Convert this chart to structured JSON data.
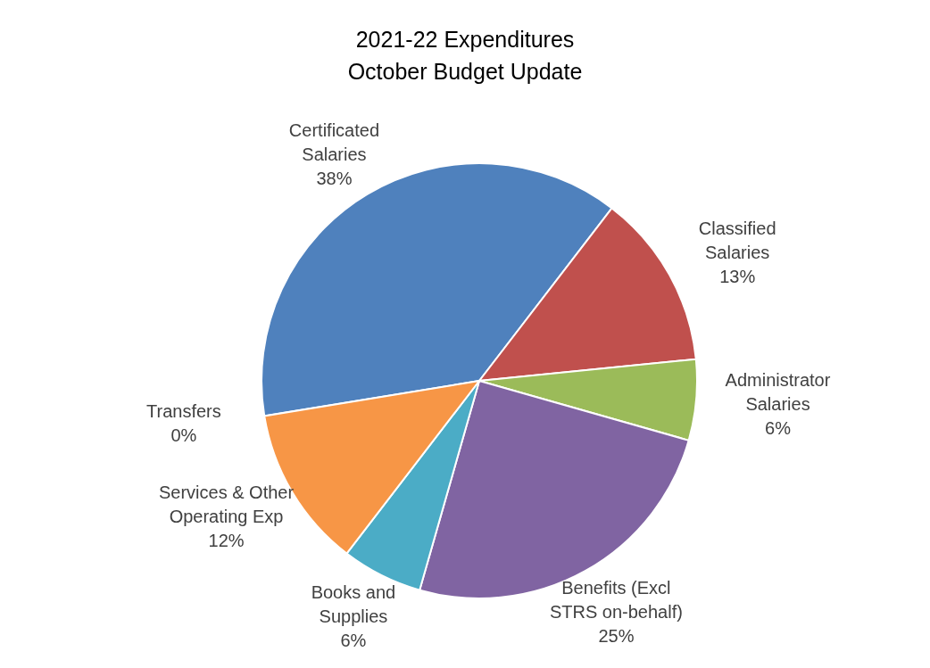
{
  "chart_data": {
    "type": "pie",
    "title": "2021-22 Expenditures\nOctober Budget Update",
    "categories": [
      "Certificated Salaries",
      "Classified Salaries",
      "Administrator Salaries",
      "Benefits (Excl STRS on-behalf)",
      "Books and Supplies",
      "Services & Other Operating Exp",
      "Transfers"
    ],
    "values": [
      38,
      13,
      6,
      25,
      6,
      12,
      0
    ],
    "value_labels": [
      "38%",
      "13%",
      "6%",
      "25%",
      "6%",
      "12%",
      "0%"
    ],
    "colors": [
      "#4f81bd",
      "#c0504d",
      "#9bbb59",
      "#8064a2",
      "#4bacc6",
      "#f79646",
      "#2c4d75"
    ],
    "legend": false
  }
}
